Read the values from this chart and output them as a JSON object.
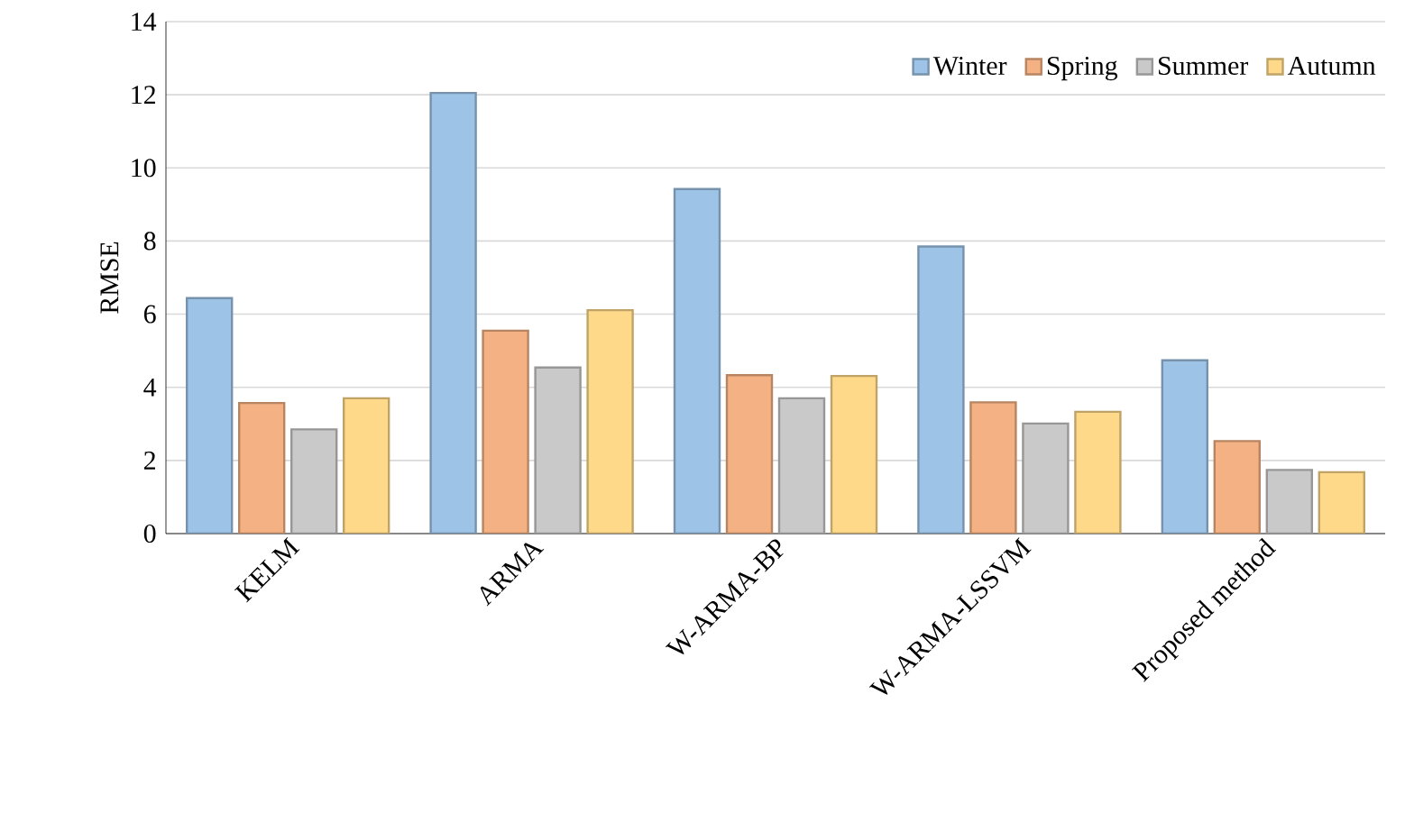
{
  "chart_data": {
    "type": "bar",
    "ylabel": "RMSE",
    "categories": [
      "KELM",
      "ARMA",
      "W-ARMA-BP",
      "W-ARMA-LSSVM",
      "Proposed method"
    ],
    "series": [
      {
        "name": "Winter",
        "color": "#9dc3e6",
        "values": [
          6.44,
          12.05,
          9.42,
          7.85,
          4.74
        ]
      },
      {
        "name": "Spring",
        "color": "#f4b183",
        "values": [
          3.57,
          5.55,
          4.33,
          3.59,
          2.53
        ]
      },
      {
        "name": "Summer",
        "color": "#c9c9c9",
        "values": [
          2.85,
          4.54,
          3.7,
          3.01,
          1.74
        ]
      },
      {
        "name": "Autumn",
        "color": "#ffd98a",
        "values": [
          3.7,
          6.11,
          4.31,
          3.33,
          1.68
        ]
      }
    ],
    "ylim": [
      0,
      14
    ],
    "yticks": [
      0,
      2,
      4,
      6,
      8,
      10,
      12,
      14
    ],
    "grid": "y",
    "legend": "top right"
  }
}
